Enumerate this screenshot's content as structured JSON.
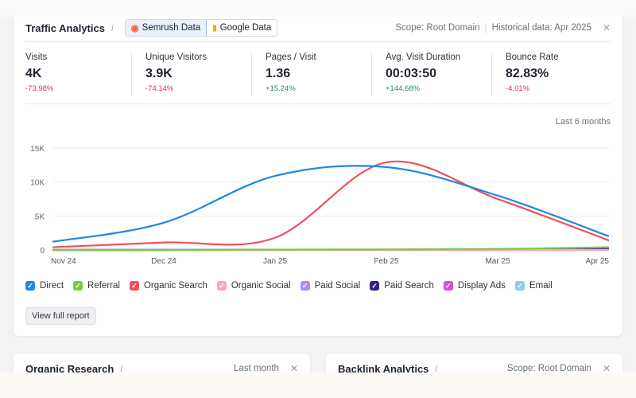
{
  "header": {
    "title": "Traffic Analytics",
    "info_icon": "info-icon",
    "tabs": [
      {
        "label": "Semrush Data",
        "icon": "semrush-logo-icon",
        "active": true
      },
      {
        "label": "Google Data",
        "icon": "google-analytics-icon",
        "active": false
      }
    ],
    "scope": "Scope: Root Domain",
    "historical": "Historical data: Apr 2025"
  },
  "metrics": [
    {
      "label": "Visits",
      "value": "4K",
      "change": "-73.98%",
      "trend": "neg"
    },
    {
      "label": "Unique Visitors",
      "value": "3.9K",
      "change": "-74.14%",
      "trend": "neg"
    },
    {
      "label": "Pages / Visit",
      "value": "1.36",
      "change": "+15.24%",
      "trend": "pos"
    },
    {
      "label": "Avg. Visit Duration",
      "value": "00:03:50",
      "change": "+144.68%",
      "trend": "pos"
    },
    {
      "label": "Bounce Rate",
      "value": "82.83%",
      "change": "-4.01%",
      "trend": "neg"
    }
  ],
  "period": "Last 6 months",
  "chart_data": {
    "type": "line",
    "categories": [
      "Nov 24",
      "Dec 24",
      "Jan 25",
      "Feb 25",
      "Mar 25",
      "Apr 25"
    ],
    "yticks": [
      "0",
      "5K",
      "10K",
      "15K"
    ],
    "ylim": [
      0,
      15000
    ],
    "grid": true,
    "legend_placement": "bottom",
    "series": [
      {
        "name": "Direct",
        "color": "#1e88e5",
        "values": [
          1200,
          4000,
          10900,
          12200,
          8000,
          2000
        ]
      },
      {
        "name": "Referral",
        "color": "#7ac943",
        "values": [
          0,
          0,
          50,
          80,
          150,
          400
        ]
      },
      {
        "name": "Organic Search",
        "color": "#f0505a",
        "values": [
          400,
          1100,
          1800,
          12900,
          7500,
          1400
        ]
      },
      {
        "name": "Organic Social",
        "color": "#f7a8b8",
        "values": [
          0,
          0,
          0,
          0,
          0,
          0
        ]
      },
      {
        "name": "Paid Social",
        "color": "#b08af5",
        "values": [
          0,
          0,
          0,
          0,
          0,
          0
        ]
      },
      {
        "name": "Paid Search",
        "color": "#3a1f8a",
        "values": [
          0,
          0,
          20,
          40,
          80,
          200
        ]
      },
      {
        "name": "Display Ads",
        "color": "#d94fd6",
        "values": [
          0,
          0,
          0,
          0,
          0,
          0
        ]
      },
      {
        "name": "Email",
        "color": "#8ec9f5",
        "values": [
          50,
          50,
          50,
          50,
          50,
          50
        ]
      }
    ]
  },
  "view_report": "View full report",
  "organic": {
    "title": "Organic Research",
    "period": "Last month"
  },
  "backlink": {
    "title": "Backlink Analytics",
    "scope": "Scope: Root Domain"
  }
}
